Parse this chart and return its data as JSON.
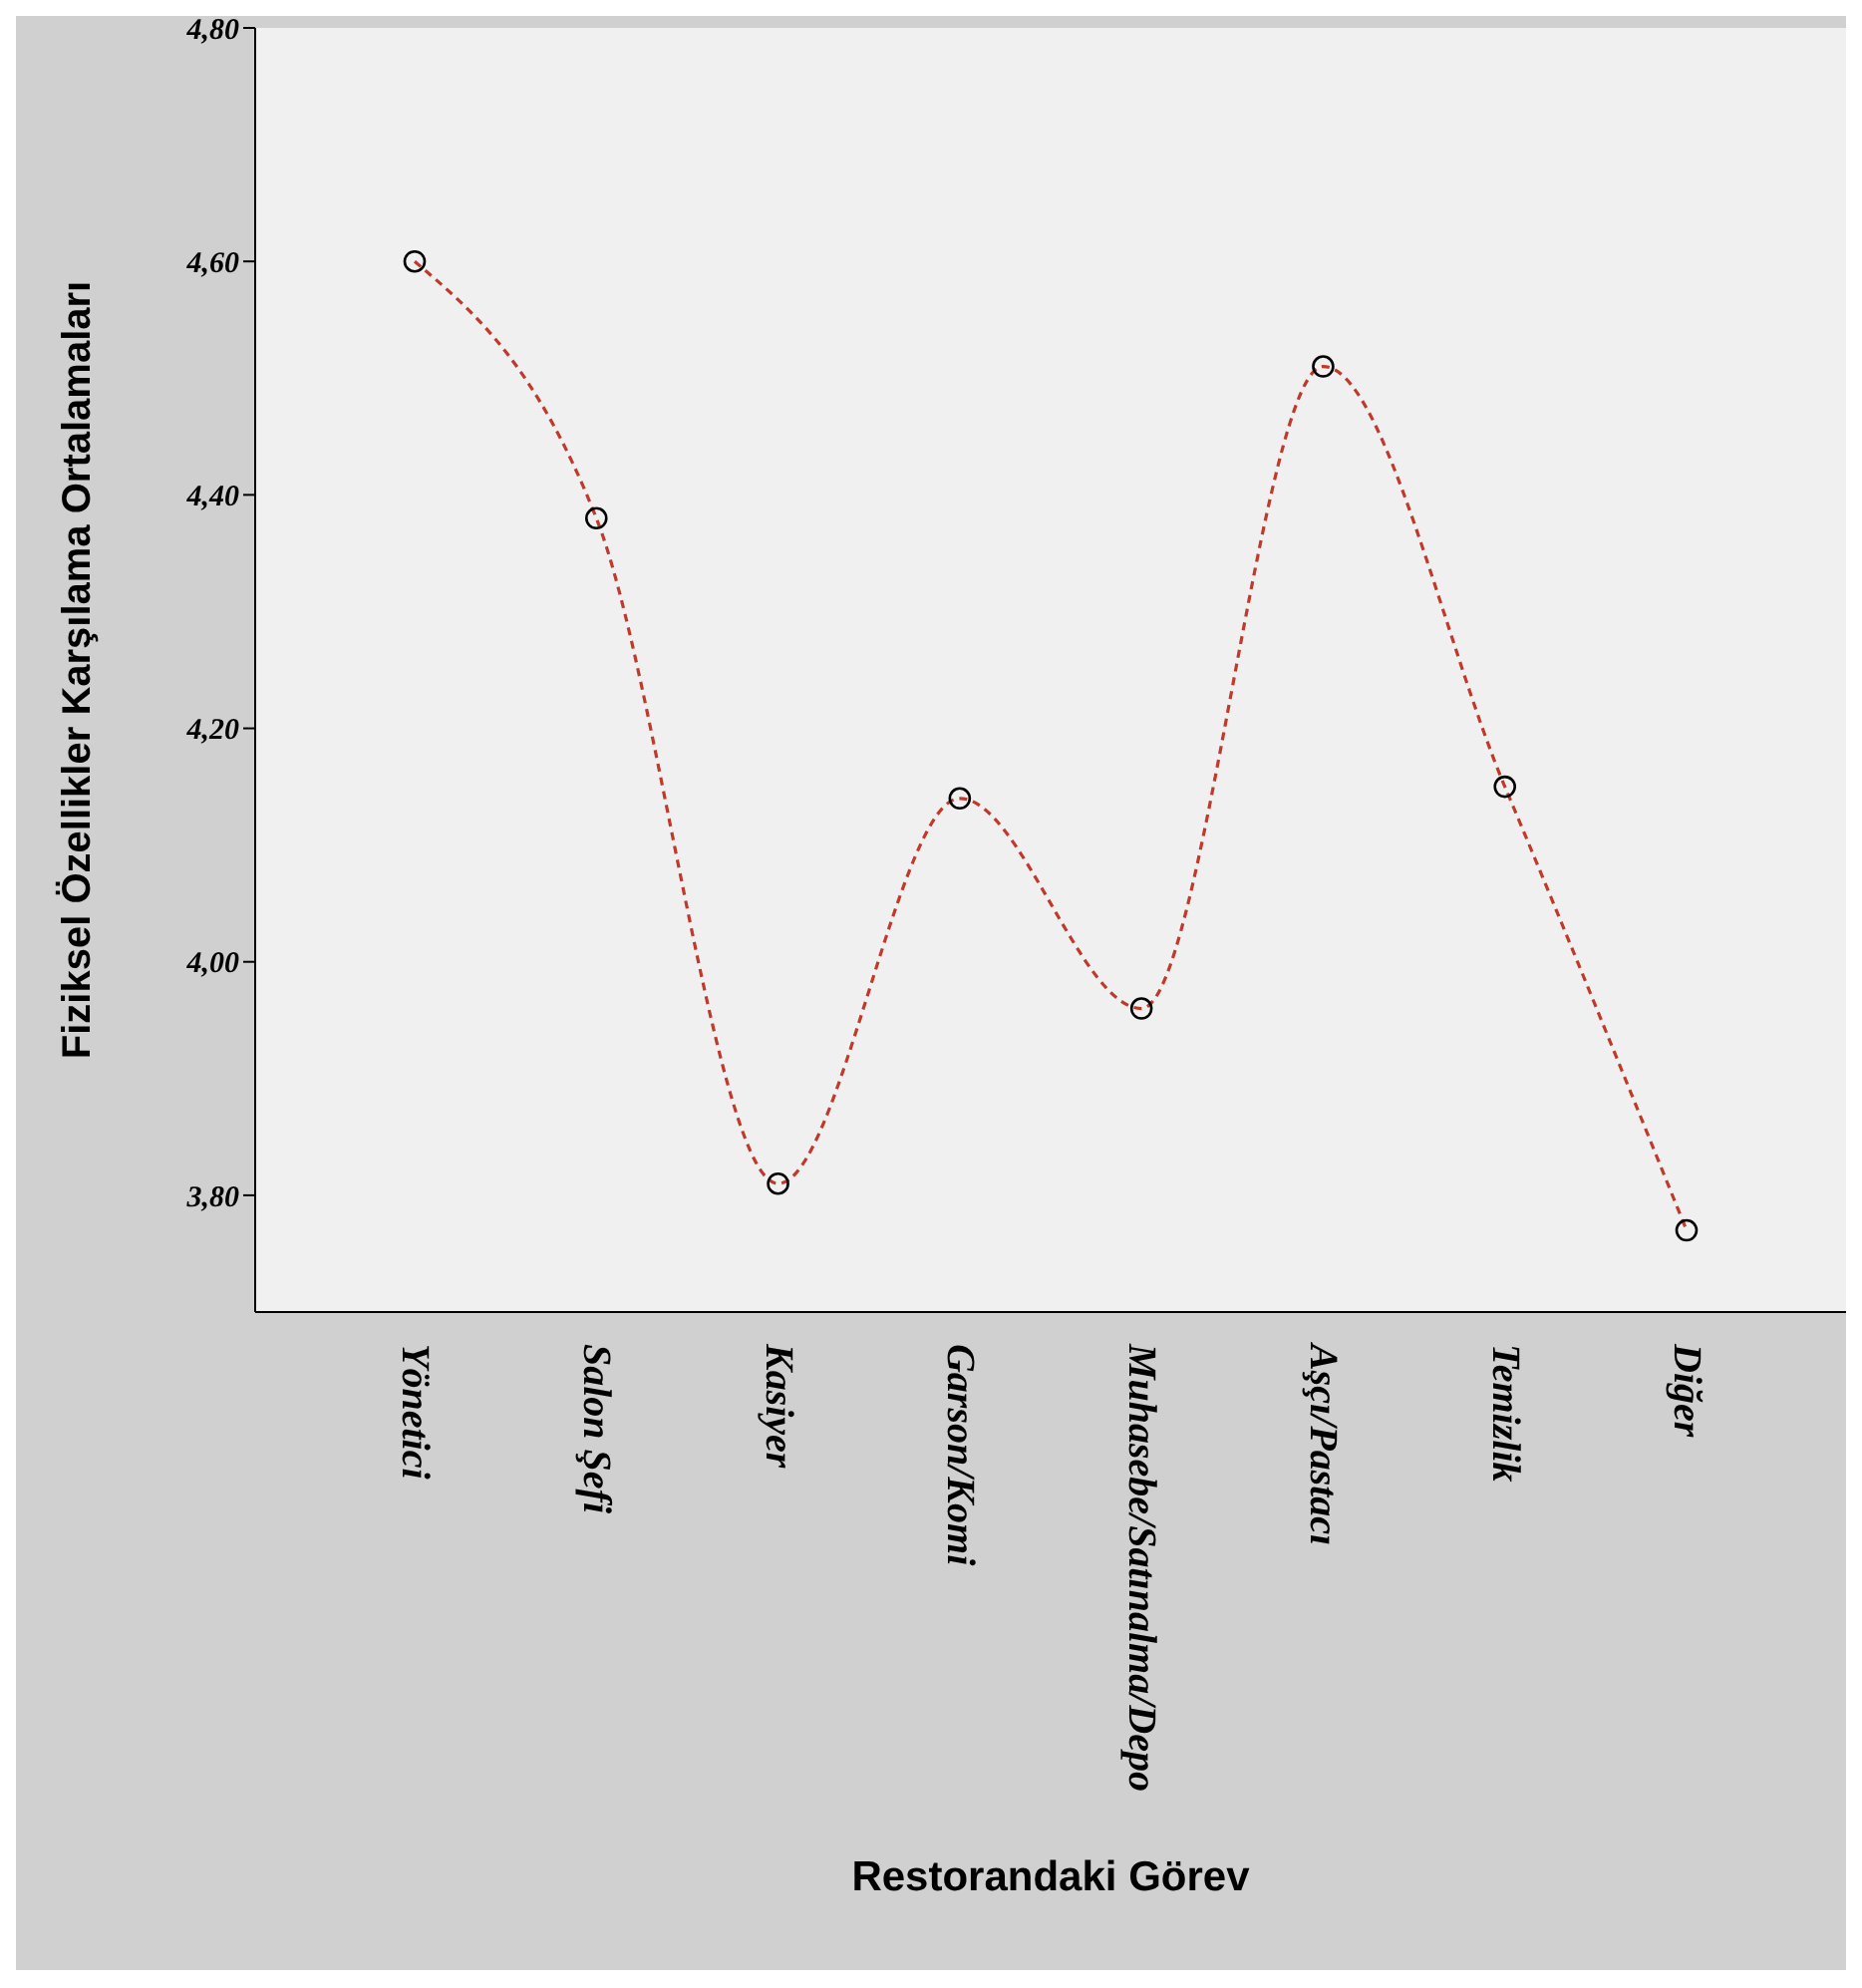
{
  "chart_data": {
    "type": "line",
    "xlabel": "Restorandaki Görev",
    "ylabel": "Fiziksel Özellikler Karşılama Ortalamaları",
    "categories": [
      "Yönetici",
      "Salon Şefi",
      "Kasiyer",
      "Garson/Komi",
      "Muhasebe/Satınalma/Depo",
      "Aşçı/Pastacı",
      "Temizlik",
      "Diğer"
    ],
    "values": [
      4.6,
      4.38,
      3.81,
      4.14,
      3.96,
      4.51,
      4.15,
      3.77
    ],
    "color": "#c0392b",
    "marker": "circle",
    "line_style": "dashed",
    "ylim": [
      3.7,
      4.8
    ],
    "yticks": [
      {
        "value": 3.8,
        "label": "3,80"
      },
      {
        "value": 4.0,
        "label": "4,00"
      },
      {
        "value": 4.2,
        "label": "4,20"
      },
      {
        "value": 4.4,
        "label": "4,40"
      },
      {
        "value": 4.6,
        "label": "4,60"
      },
      {
        "value": 4.8,
        "label": "4,80"
      }
    ]
  }
}
